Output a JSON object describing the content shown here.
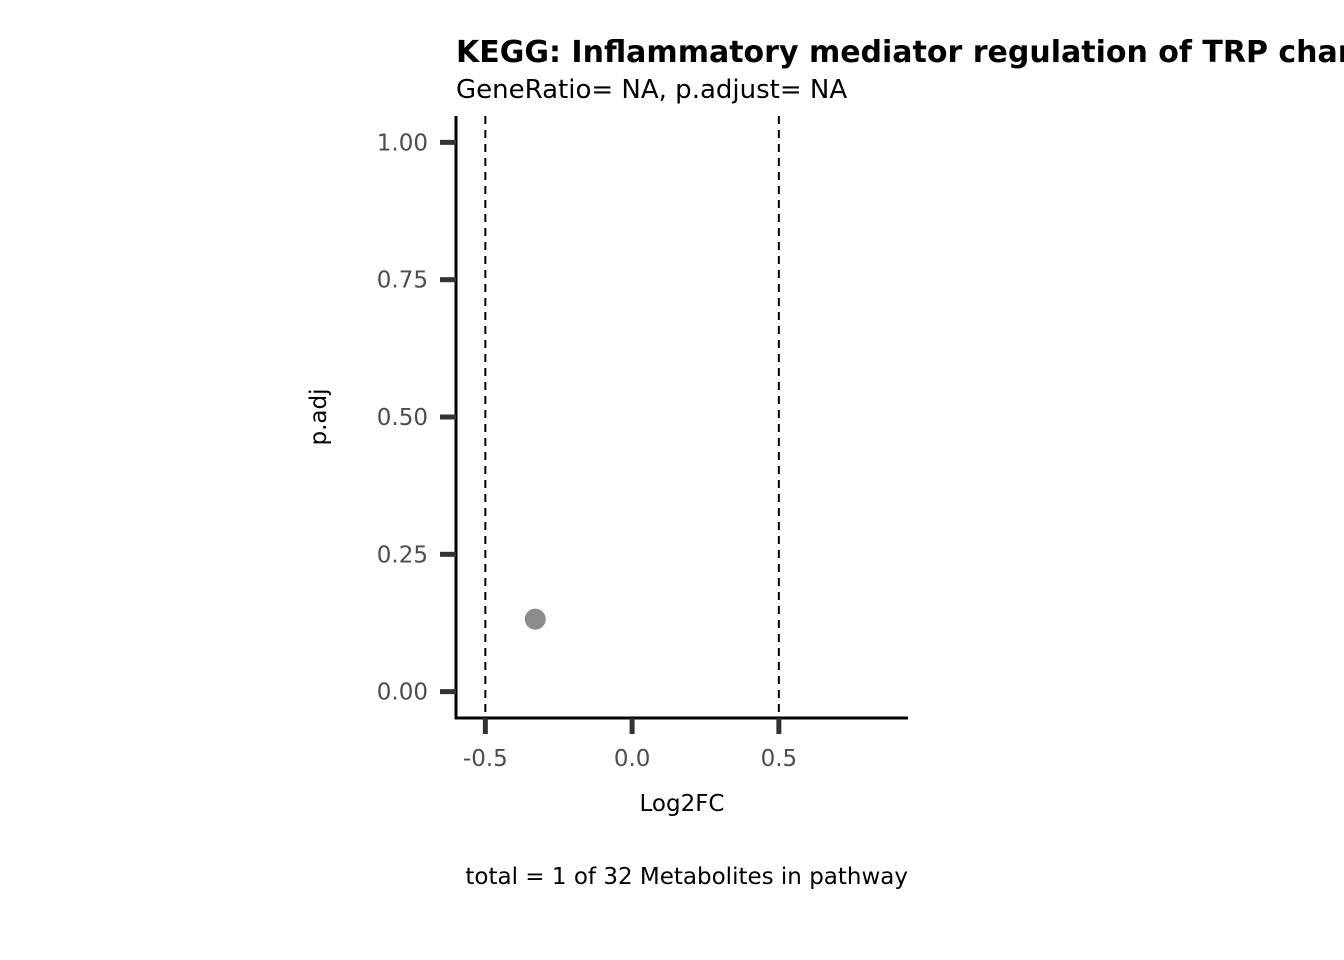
{
  "chart_data": {
    "type": "scatter",
    "title": "KEGG: Inflammatory mediator regulation of TRP channels",
    "subtitle": "GeneRatio= NA, p.adjust= NA",
    "xlabel": "Log2FC",
    "ylabel": "p.adj",
    "caption": "total = 1 of 32 Metabolites in pathway",
    "xlim": [
      -0.6,
      0.94
    ],
    "ylim": [
      -0.048,
      1.048
    ],
    "x_ticks": [
      -0.5,
      0.0,
      0.5
    ],
    "x_tick_labels": [
      "-0.5",
      "0.0",
      "0.5"
    ],
    "y_ticks": [
      0.0,
      0.25,
      0.5,
      0.75,
      1.0
    ],
    "y_tick_labels": [
      "0.00",
      "0.25",
      "0.50",
      "0.75",
      "1.00"
    ],
    "vlines": [
      -0.5,
      0.5
    ],
    "grid": false,
    "points": [
      {
        "x": -0.33,
        "y": 0.132
      }
    ],
    "point_color": "#8c8c8c",
    "axis_color": "#000000",
    "tick_color": "#333333"
  }
}
